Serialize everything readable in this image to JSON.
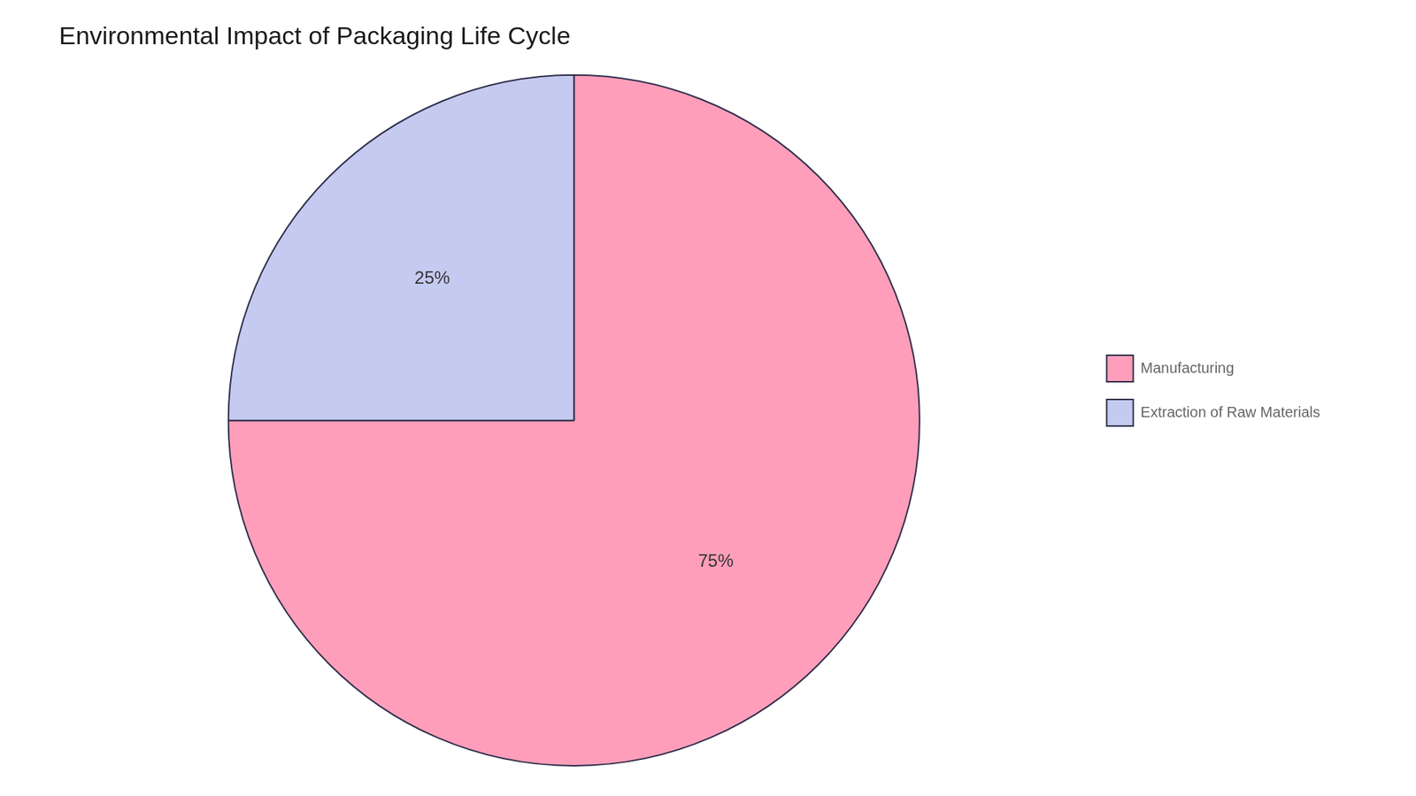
{
  "chart_data": {
    "type": "pie",
    "title": "Environmental Impact of Packaging Life Cycle",
    "categories": [
      "Manufacturing",
      "Extraction of Raw Materials"
    ],
    "values": [
      75,
      25
    ],
    "value_labels": [
      "75%",
      "25%"
    ],
    "data_labels": true,
    "colors": [
      "#FF9EBB",
      "#C5CAF0"
    ],
    "legend": "right"
  }
}
